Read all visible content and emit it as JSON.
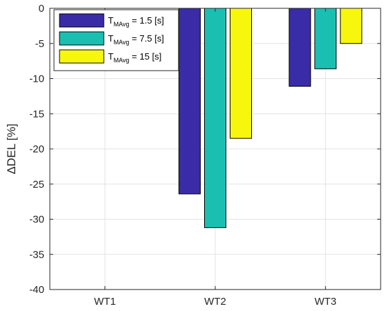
{
  "chart_data": {
    "type": "bar",
    "categories": [
      "WT1",
      "WT2",
      "WT3"
    ],
    "series": [
      {
        "name_main": "T",
        "name_sub": "MAvg",
        "name_rest": " = 1.5 [s]",
        "color": "#3a2ca7",
        "values": [
          0,
          -26.4,
          -11.1
        ]
      },
      {
        "name_main": "T",
        "name_sub": "MAvg",
        "name_rest": " = 7.5 [s]",
        "color": "#1bbfb2",
        "values": [
          0,
          -31.2,
          -8.6
        ]
      },
      {
        "name_main": "T",
        "name_sub": "MAvg",
        "name_rest": " = 15 [s]",
        "color": "#f7f70d",
        "values": [
          0,
          -18.5,
          -5.0
        ]
      }
    ],
    "title": "",
    "xlabel": "",
    "ylabel": "ΔDEL [%]",
    "ylim": [
      -40,
      0
    ],
    "yticks": [
      0,
      -5,
      -10,
      -15,
      -20,
      -25,
      -30,
      -35,
      -40
    ],
    "grid": true,
    "legend": "top-left"
  }
}
